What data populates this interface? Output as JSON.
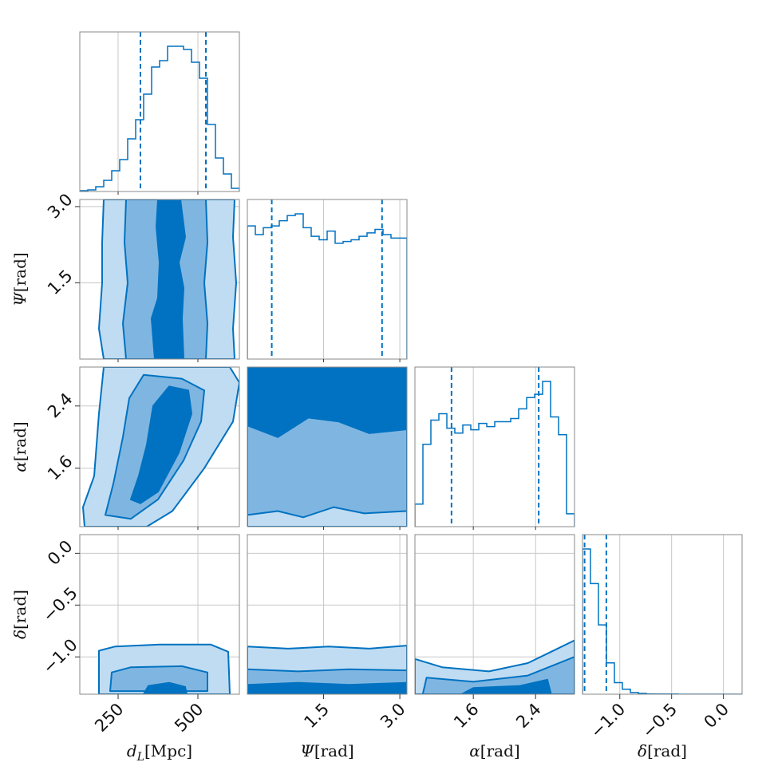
{
  "chart_data": {
    "type": "corner",
    "color": "#0072c1",
    "fill_levels": [
      "#c0dcf2",
      "#7fb6e1",
      "#0072c1"
    ],
    "parameters": [
      {
        "key": "dL",
        "label": "d_L[Mpc]",
        "range": [
          130,
          630
        ],
        "ticks": [
          250,
          500
        ],
        "tick_labels": [
          "250",
          "500"
        ]
      },
      {
        "key": "psi",
        "label": "Ψ[rad]",
        "range": [
          0,
          3.14
        ],
        "ticks": [
          1.5,
          3.0
        ],
        "tick_labels": [
          "1.5",
          "3.0"
        ]
      },
      {
        "key": "alpha",
        "label": "α[rad]",
        "range": [
          0.85,
          2.9
        ],
        "ticks": [
          1.6,
          2.4
        ],
        "tick_labels": [
          "1.6",
          "2.4"
        ]
      },
      {
        "key": "delta",
        "label": "δ[rad]",
        "range": [
          -1.36,
          0.18
        ],
        "ticks": [
          -1.0,
          -0.5,
          0.0
        ],
        "tick_labels": [
          "−1.0",
          "−0.5",
          "0.0"
        ]
      }
    ],
    "histograms": [
      {
        "param": "dL",
        "quantiles": [
          320,
          525
        ],
        "edges": [
          130,
          155,
          180,
          205,
          230,
          255,
          280,
          305,
          330,
          355,
          380,
          405,
          430,
          455,
          480,
          505,
          530,
          555,
          580,
          605,
          630
        ],
        "counts": [
          0.005,
          0.01,
          0.03,
          0.07,
          0.13,
          0.2,
          0.33,
          0.45,
          0.61,
          0.78,
          0.82,
          0.91,
          0.91,
          0.89,
          0.81,
          0.71,
          0.42,
          0.21,
          0.11,
          0.02
        ]
      },
      {
        "param": "psi",
        "quantiles": [
          0.48,
          2.65
        ],
        "edges": [
          0,
          0.157,
          0.314,
          0.471,
          0.628,
          0.785,
          0.942,
          1.099,
          1.256,
          1.413,
          1.57,
          1.727,
          1.884,
          2.041,
          2.198,
          2.355,
          2.512,
          2.669,
          2.826,
          2.983,
          3.14
        ],
        "counts": [
          0.77,
          0.72,
          0.76,
          0.77,
          0.8,
          0.83,
          0.84,
          0.76,
          0.71,
          0.69,
          0.74,
          0.67,
          0.68,
          0.69,
          0.71,
          0.73,
          0.75,
          0.72,
          0.7,
          0.7
        ]
      },
      {
        "param": "alpha",
        "quantiles": [
          1.32,
          2.44
        ],
        "edges": [
          0.85,
          0.9525,
          1.055,
          1.1575,
          1.26,
          1.3625,
          1.465,
          1.5675,
          1.67,
          1.7725,
          1.875,
          1.9775,
          2.08,
          2.1825,
          2.285,
          2.3875,
          2.49,
          2.5925,
          2.695,
          2.7975,
          2.9
        ],
        "counts": [
          0.14,
          0.51,
          0.66,
          0.7,
          0.61,
          0.58,
          0.63,
          0.6,
          0.64,
          0.62,
          0.65,
          0.65,
          0.67,
          0.73,
          0.8,
          0.82,
          0.9,
          0.68,
          0.57,
          0.08
        ]
      },
      {
        "param": "delta",
        "quantiles": [
          -1.34,
          -1.13
        ],
        "edges": [
          -1.36,
          -1.283,
          -1.206,
          -1.129,
          -1.052,
          -0.975,
          -0.898,
          -0.821,
          -0.744,
          -0.667,
          -0.59,
          -0.513,
          -0.436,
          -0.359,
          -0.282,
          -0.205,
          -0.128,
          -0.051,
          0.026,
          0.103,
          0.18
        ],
        "counts": [
          0.88,
          0.67,
          0.42,
          0.19,
          0.07,
          0.03,
          0.01,
          0.005,
          0.002,
          0.001,
          0.001,
          0.001,
          0,
          0,
          0,
          0,
          0,
          0,
          0,
          0
        ]
      }
    ],
    "contour_pairs": [
      {
        "x": "dL",
        "y": "psi",
        "levels": [
          {
            "fill": 0,
            "points": [
              [
                205,
                0.0
              ],
              [
                190,
                0.6
              ],
              [
                200,
                1.5
              ],
              [
                200,
                2.3
              ],
              [
                205,
                3.14
              ],
              [
                615,
                3.14
              ],
              [
                610,
                2.4
              ],
              [
                620,
                1.5
              ],
              [
                610,
                0.6
              ],
              [
                615,
                0.0
              ]
            ]
          },
          {
            "fill": 1,
            "points": [
              [
                275,
                0.0
              ],
              [
                265,
                0.7
              ],
              [
                280,
                1.5
              ],
              [
                270,
                2.3
              ],
              [
                275,
                3.14
              ],
              [
                525,
                3.14
              ],
              [
                530,
                2.3
              ],
              [
                520,
                1.5
              ],
              [
                530,
                0.7
              ],
              [
                525,
                0.0
              ]
            ]
          },
          {
            "fill": 2,
            "points": [
              [
                365,
                0.0
              ],
              [
                355,
                0.8
              ],
              [
                375,
                1.2
              ],
              [
                380,
                1.9
              ],
              [
                370,
                2.6
              ],
              [
                375,
                3.14
              ],
              [
                445,
                3.14
              ],
              [
                460,
                2.4
              ],
              [
                440,
                1.9
              ],
              [
                455,
                1.4
              ],
              [
                450,
                0.8
              ],
              [
                455,
                0.0
              ]
            ]
          }
        ]
      },
      {
        "x": "dL",
        "y": "alpha",
        "levels": [
          {
            "fill": 0,
            "points": [
              [
                145,
                0.85
              ],
              [
                140,
                1.1
              ],
              [
                175,
                1.5
              ],
              [
                190,
                2.3
              ],
              [
                205,
                2.9
              ],
              [
                600,
                2.9
              ],
              [
                630,
                2.7
              ],
              [
                610,
                2.2
              ],
              [
                520,
                1.6
              ],
              [
                420,
                1.05
              ],
              [
                340,
                0.85
              ]
            ]
          },
          {
            "fill": 1,
            "points": [
              [
                210,
                1.0
              ],
              [
                235,
                1.4
              ],
              [
                265,
                2.0
              ],
              [
                285,
                2.5
              ],
              [
                330,
                2.8
              ],
              [
                450,
                2.75
              ],
              [
                520,
                2.6
              ],
              [
                510,
                2.2
              ],
              [
                455,
                1.7
              ],
              [
                375,
                1.2
              ],
              [
                290,
                0.95
              ]
            ]
          },
          {
            "fill": 2,
            "points": [
              [
                290,
                1.2
              ],
              [
                315,
                1.5
              ],
              [
                340,
                1.9
              ],
              [
                360,
                2.4
              ],
              [
                410,
                2.65
              ],
              [
                470,
                2.6
              ],
              [
                480,
                2.3
              ],
              [
                440,
                1.8
              ],
              [
                375,
                1.3
              ],
              [
                320,
                1.15
              ]
            ]
          }
        ]
      },
      {
        "x": "psi",
        "y": "alpha",
        "levels": [
          {
            "fill": 0,
            "points": [
              [
                0,
                0.85
              ],
              [
                0,
                2.9
              ],
              [
                3.14,
                2.9
              ],
              [
                3.14,
                0.85
              ]
            ]
          },
          {
            "fill": 1,
            "points": [
              [
                0,
                1.0
              ],
              [
                0.6,
                1.05
              ],
              [
                1.1,
                0.97
              ],
              [
                1.7,
                1.1
              ],
              [
                2.3,
                1.02
              ],
              [
                3.14,
                1.05
              ],
              [
                3.14,
                2.9
              ],
              [
                0,
                2.9
              ]
            ]
          },
          {
            "fill": 2,
            "points": [
              [
                0,
                2.15
              ],
              [
                0.6,
                2.0
              ],
              [
                1.2,
                2.25
              ],
              [
                1.8,
                2.2
              ],
              [
                2.4,
                2.05
              ],
              [
                3.14,
                2.1
              ],
              [
                3.14,
                2.9
              ],
              [
                0,
                2.9
              ]
            ]
          }
        ]
      },
      {
        "x": "psi",
        "y": "delta",
        "levels": [
          {
            "fill": 0,
            "points": [
              [
                0,
                -1.36
              ],
              [
                0,
                -0.9
              ],
              [
                0.8,
                -0.92
              ],
              [
                1.6,
                -0.9
              ],
              [
                2.4,
                -0.92
              ],
              [
                3.14,
                -0.89
              ],
              [
                3.14,
                -1.36
              ]
            ]
          },
          {
            "fill": 1,
            "points": [
              [
                0,
                -1.36
              ],
              [
                0,
                -1.12
              ],
              [
                1.0,
                -1.14
              ],
              [
                2.0,
                -1.12
              ],
              [
                3.14,
                -1.13
              ],
              [
                3.14,
                -1.36
              ]
            ]
          },
          {
            "fill": 2,
            "points": [
              [
                0,
                -1.36
              ],
              [
                0,
                -1.27
              ],
              [
                1.0,
                -1.25
              ],
              [
                2.0,
                -1.27
              ],
              [
                3.14,
                -1.25
              ],
              [
                3.14,
                -1.36
              ]
            ]
          }
        ]
      },
      {
        "x": "dL",
        "y": "delta",
        "levels": [
          {
            "fill": 0,
            "points": [
              [
                190,
                -1.36
              ],
              [
                190,
                -0.94
              ],
              [
                240,
                -0.9
              ],
              [
                380,
                -0.88
              ],
              [
                540,
                -0.88
              ],
              [
                595,
                -0.95
              ],
              [
                600,
                -1.36
              ]
            ]
          },
          {
            "fill": 1,
            "points": [
              [
                225,
                -1.33
              ],
              [
                230,
                -1.15
              ],
              [
                290,
                -1.1
              ],
              [
                450,
                -1.09
              ],
              [
                530,
                -1.15
              ],
              [
                530,
                -1.33
              ]
            ]
          },
          {
            "fill": 2,
            "points": [
              [
                330,
                -1.36
              ],
              [
                345,
                -1.28
              ],
              [
                410,
                -1.25
              ],
              [
                460,
                -1.29
              ],
              [
                465,
                -1.36
              ]
            ]
          }
        ]
      },
      {
        "x": "alpha",
        "y": "delta",
        "levels": [
          {
            "fill": 0,
            "points": [
              [
                0.85,
                -1.36
              ],
              [
                0.85,
                -1.02
              ],
              [
                1.2,
                -1.1
              ],
              [
                1.8,
                -1.14
              ],
              [
                2.3,
                -1.06
              ],
              [
                2.6,
                -0.95
              ],
              [
                2.9,
                -0.84
              ],
              [
                2.9,
                -1.36
              ]
            ]
          },
          {
            "fill": 1,
            "points": [
              [
                0.95,
                -1.36
              ],
              [
                1.0,
                -1.2
              ],
              [
                1.6,
                -1.24
              ],
              [
                2.3,
                -1.18
              ],
              [
                2.9,
                -1.0
              ],
              [
                2.9,
                -1.36
              ]
            ]
          },
          {
            "fill": 2,
            "points": [
              [
                1.45,
                -1.36
              ],
              [
                1.6,
                -1.3
              ],
              [
                2.2,
                -1.28
              ],
              [
                2.55,
                -1.22
              ],
              [
                2.6,
                -1.36
              ]
            ]
          }
        ]
      }
    ]
  }
}
